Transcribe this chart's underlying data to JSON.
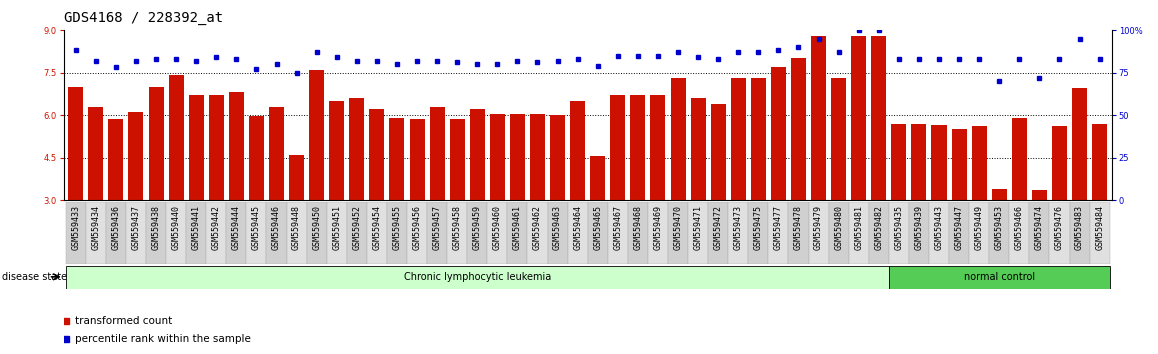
{
  "title": "GDS4168 / 228392_at",
  "samples": [
    "GSM559433",
    "GSM559434",
    "GSM559436",
    "GSM559437",
    "GSM559438",
    "GSM559440",
    "GSM559441",
    "GSM559442",
    "GSM559444",
    "GSM559445",
    "GSM559446",
    "GSM559448",
    "GSM559450",
    "GSM559451",
    "GSM559452",
    "GSM559454",
    "GSM559455",
    "GSM559456",
    "GSM559457",
    "GSM559458",
    "GSM559459",
    "GSM559460",
    "GSM559461",
    "GSM559462",
    "GSM559463",
    "GSM559464",
    "GSM559465",
    "GSM559467",
    "GSM559468",
    "GSM559469",
    "GSM559470",
    "GSM559471",
    "GSM559472",
    "GSM559473",
    "GSM559475",
    "GSM559477",
    "GSM559478",
    "GSM559479",
    "GSM559480",
    "GSM559481",
    "GSM559482",
    "GSM559435",
    "GSM559439",
    "GSM559443",
    "GSM559447",
    "GSM559449",
    "GSM559453",
    "GSM559466",
    "GSM559474",
    "GSM559476",
    "GSM559483",
    "GSM559484"
  ],
  "bar_values": [
    7.0,
    6.3,
    5.85,
    6.1,
    7.0,
    7.4,
    6.7,
    6.7,
    6.8,
    5.95,
    6.3,
    4.6,
    7.6,
    6.5,
    6.6,
    6.2,
    5.9,
    5.85,
    6.3,
    5.85,
    6.2,
    6.05,
    6.05,
    6.05,
    6.0,
    6.5,
    4.55,
    6.7,
    6.7,
    6.7,
    7.3,
    6.6,
    6.4,
    7.3,
    7.3,
    7.7,
    8.0,
    8.8,
    7.3,
    8.8,
    8.8,
    5.7,
    5.7,
    5.65,
    5.5,
    5.6,
    3.4,
    5.9,
    3.35,
    5.6,
    6.95,
    5.7
  ],
  "percentile_values": [
    88,
    82,
    78,
    82,
    83,
    83,
    82,
    84,
    83,
    77,
    80,
    75,
    87,
    84,
    82,
    82,
    80,
    82,
    82,
    81,
    80,
    80,
    82,
    81,
    82,
    83,
    79,
    85,
    85,
    85,
    87,
    84,
    83,
    87,
    87,
    88,
    90,
    95,
    87,
    100,
    100,
    83,
    83,
    83,
    83,
    83,
    70,
    83,
    72,
    83,
    95,
    83
  ],
  "disease_groups": [
    {
      "label": "Chronic lymphocytic leukemia",
      "start": 0,
      "end": 40,
      "color": "#ccffcc"
    },
    {
      "label": "normal control",
      "start": 41,
      "end": 51,
      "color": "#55cc55"
    }
  ],
  "left_yticks": [
    3,
    4.5,
    6,
    7.5,
    9
  ],
  "right_yticks": [
    0,
    25,
    50,
    75,
    100
  ],
  "ylim_left": [
    3,
    9
  ],
  "ylim_right": [
    0,
    100
  ],
  "bar_color": "#cc1100",
  "dot_color": "#0000cc",
  "grid_color": "#555555",
  "title_fontsize": 10,
  "tick_fontsize": 6,
  "label_fontsize": 7.5
}
